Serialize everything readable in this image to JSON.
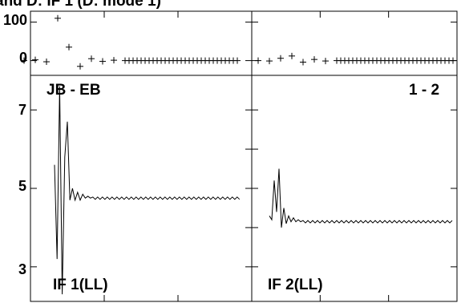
{
  "title": "and D: IF 1 (D: mode 1)",
  "chart_data": {
    "type": "line",
    "grid": false,
    "top_panels": [
      {
        "yticks": [
          "100",
          "0"
        ],
        "ylim": [
          -30,
          120
        ],
        "marker": "+"
      },
      {
        "yticks": [],
        "ylim": [
          -30,
          120
        ],
        "marker": "+"
      }
    ],
    "bottom_panels": [
      {
        "baseline_label": "JB - EB",
        "if_label": "IF 1(LL)",
        "yticks": [
          "7",
          "5",
          "3"
        ],
        "ylim": [
          2.2,
          7.8
        ]
      },
      {
        "baseline_label": "1 - 2",
        "if_label": "IF 2(LL)",
        "yticks": [],
        "ylim": [
          2.2,
          7.8
        ]
      }
    ],
    "series": [
      {
        "panel": "top-left",
        "x": [
          1,
          2,
          3,
          4,
          5,
          6,
          7,
          8,
          9,
          10
        ],
        "y": [
          0,
          2,
          -3,
          110,
          35,
          -15,
          5,
          -2,
          1,
          0
        ],
        "tail_value": 0
      },
      {
        "panel": "top-right",
        "x": [
          1,
          2,
          3,
          4,
          5,
          6,
          7,
          8
        ],
        "y": [
          0,
          -1,
          6,
          12,
          -4,
          3,
          -1,
          0
        ],
        "tail_value": 0
      },
      {
        "panel": "bottom-left",
        "x": [
          1,
          2,
          3,
          4,
          5,
          6,
          7,
          8,
          9,
          10,
          11,
          12,
          13,
          14,
          15
        ],
        "y": [
          5.6,
          3.2,
          7.6,
          2.3,
          5.8,
          6.7,
          4.7,
          5.0,
          4.7,
          4.9,
          4.7,
          4.85,
          4.75,
          4.8,
          4.75
        ],
        "tail_value": 4.75
      },
      {
        "panel": "bottom-right",
        "x": [
          1,
          2,
          3,
          4,
          5,
          6,
          7,
          8,
          9,
          10,
          11,
          12,
          13,
          14
        ],
        "y": [
          4.3,
          4.2,
          5.2,
          4.4,
          5.5,
          4.0,
          4.5,
          4.1,
          4.3,
          4.15,
          4.25,
          4.15,
          4.2,
          4.15
        ],
        "tail_value": 4.15
      }
    ]
  }
}
